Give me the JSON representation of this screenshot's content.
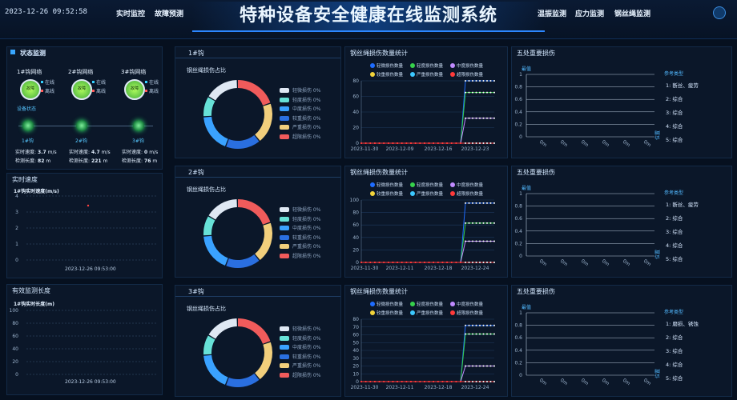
{
  "header": {
    "datetime": "2023-12-26 09:52:58",
    "nav_left": [
      "实时监控",
      "故障预测"
    ],
    "title": "特种设备安全健康在线监测系统",
    "nav_right": [
      "温振监测",
      "应力监测",
      "钢丝绳监测"
    ]
  },
  "status": {
    "title": "状态监测",
    "gateways": [
      {
        "name": "1#钩网络",
        "badge": "故障",
        "online": "在线",
        "offline": "离线"
      },
      {
        "name": "2#钩网络",
        "badge": "故障",
        "online": "在线",
        "offline": "离线"
      },
      {
        "name": "3#钩网络",
        "badge": "故障",
        "online": "在线",
        "offline": "离线"
      }
    ],
    "device_status_label": "设备状态",
    "devices": [
      {
        "name": "1#钩",
        "speed_label": "实时速度:",
        "speed": "3.7",
        "speed_unit": "m/s",
        "len_label": "检测长度:",
        "len": "82",
        "len_unit": "m"
      },
      {
        "name": "2#钩",
        "speed_label": "实时速度:",
        "speed": "4.7",
        "speed_unit": "m/s",
        "len_label": "检测长度:",
        "len": "221",
        "len_unit": "m"
      },
      {
        "name": "3#钩",
        "speed_label": "实时速度:",
        "speed": "0",
        "speed_unit": "m/s",
        "len_label": "检测长度:",
        "len": "76",
        "len_unit": "m"
      }
    ]
  },
  "speed_panel": {
    "title": "实时速度",
    "subtitle": "1#钩实时速度(m/s)",
    "yticks": [
      "4",
      "3",
      "2",
      "1",
      "0"
    ],
    "time": "2023-12-26 09:53:00"
  },
  "length_panel": {
    "title": "有效监测长度",
    "subtitle": "1#钩实时长度(m)",
    "yticks": [
      "100",
      "80",
      "60",
      "40",
      "20",
      "0"
    ],
    "time": "2023-12-26 09:53:00"
  },
  "rows": [
    {
      "hook": "1#钩",
      "donut_title": "钢丝绳损伤占比",
      "count_title": "钢丝绳损伤数量统计",
      "pos_title": "五处重要损伤"
    },
    {
      "hook": "2#钩",
      "donut_title": "钢丝绳损伤占比",
      "count_title": "钢丝绳损伤数量统计",
      "pos_title": "五处重要损伤"
    },
    {
      "hook": "3#钩",
      "donut_title": "钢丝绳损伤占比",
      "count_title": "钢丝绳损伤数量统计",
      "pos_title": "五处重要损伤"
    }
  ],
  "donut_legend": [
    {
      "label": "轻微损伤 0%",
      "color": "#dfe8f3"
    },
    {
      "label": "轻度损伤 0%",
      "color": "#67e1d7"
    },
    {
      "label": "中度损伤 0%",
      "color": "#3aa2ff"
    },
    {
      "label": "较重损伤 0%",
      "color": "#2a6fe0"
    },
    {
      "label": "严重损伤 0%",
      "color": "#f2cf7c"
    },
    {
      "label": "超限损伤 0%",
      "color": "#f05b5b"
    }
  ],
  "count_legend": [
    {
      "label": "轻微损伤数量",
      "color": "#1e6cff"
    },
    {
      "label": "轻度损伤数量",
      "color": "#36d14b"
    },
    {
      "label": "中度损伤数量",
      "color": "#c08bff"
    },
    {
      "label": "较重损伤数量",
      "color": "#f2d33a"
    },
    {
      "label": "严重损伤数量",
      "color": "#3cc8ff"
    },
    {
      "label": "超限损伤数量",
      "color": "#ff3a3a"
    }
  ],
  "position_chart": {
    "ylabel": "最值",
    "yticks": [
      "1",
      "0.8",
      "0.6",
      "0.4",
      "0.2",
      "0"
    ],
    "xticks": [
      "0m",
      "0m",
      "0m",
      "0m",
      "0m",
      "0m"
    ],
    "xlabel": "位置",
    "ref_title": "参考类型",
    "refs": [
      [
        "1: 断丝、疲劳",
        "2: 综合",
        "3: 综合",
        "4: 综合",
        "5: 综合"
      ],
      [
        "1: 断丝、疲劳",
        "2: 综合",
        "3: 综合",
        "4: 综合",
        "5: 综合"
      ],
      [
        "1: 磨损、锈蚀",
        "2: 综合",
        "3: 综合",
        "4: 综合",
        "5: 综合"
      ]
    ]
  },
  "chart_data": [
    {
      "type": "line",
      "title": "钢丝绳损伤数量统计",
      "x": [
        "2023-11-30",
        "2023-12-09",
        "2023-12-16",
        "2023-12-23"
      ],
      "ylim": [
        0,
        80
      ],
      "yticks": [
        "80",
        "60",
        "40",
        "20",
        "0"
      ],
      "series": [
        {
          "name": "轻微损伤数量",
          "color": "#1e6cff",
          "end": 80
        },
        {
          "name": "轻度损伤数量",
          "color": "#36d14b",
          "end": 65
        },
        {
          "name": "中度损伤数量",
          "color": "#c08bff",
          "end": 32
        },
        {
          "name": "超限损伤数量",
          "color": "#ff3a3a",
          "end": 0
        }
      ]
    },
    {
      "type": "line",
      "title": "钢丝绳损伤数量统计",
      "x": [
        "2023-11-30",
        "2023-12-11",
        "2023-12-18",
        "2023-12-24"
      ],
      "ylim": [
        0,
        100
      ],
      "yticks": [
        "100",
        "80",
        "60",
        "40",
        "20",
        "0"
      ],
      "series": [
        {
          "name": "轻微损伤数量",
          "color": "#1e6cff",
          "end": 95
        },
        {
          "name": "轻度损伤数量",
          "color": "#36d14b",
          "end": 63
        },
        {
          "name": "中度损伤数量",
          "color": "#c08bff",
          "end": 34
        },
        {
          "name": "超限损伤数量",
          "color": "#ff3a3a",
          "end": 0
        }
      ]
    },
    {
      "type": "line",
      "title": "钢丝绳损伤数量统计",
      "x": [
        "2023-11-30",
        "2023-12-11",
        "2023-12-18",
        "2023-12-24"
      ],
      "ylim": [
        0,
        80
      ],
      "yticks": [
        "80",
        "70",
        "60",
        "50",
        "40",
        "30",
        "20",
        "10",
        "0"
      ],
      "series": [
        {
          "name": "轻微损伤数量",
          "color": "#1e6cff",
          "end": 72
        },
        {
          "name": "轻度损伤数量",
          "color": "#36d14b",
          "end": 61
        },
        {
          "name": "中度损伤数量",
          "color": "#c08bff",
          "end": 20
        },
        {
          "name": "超限损伤数量",
          "color": "#ff3a3a",
          "end": 0
        }
      ]
    }
  ]
}
